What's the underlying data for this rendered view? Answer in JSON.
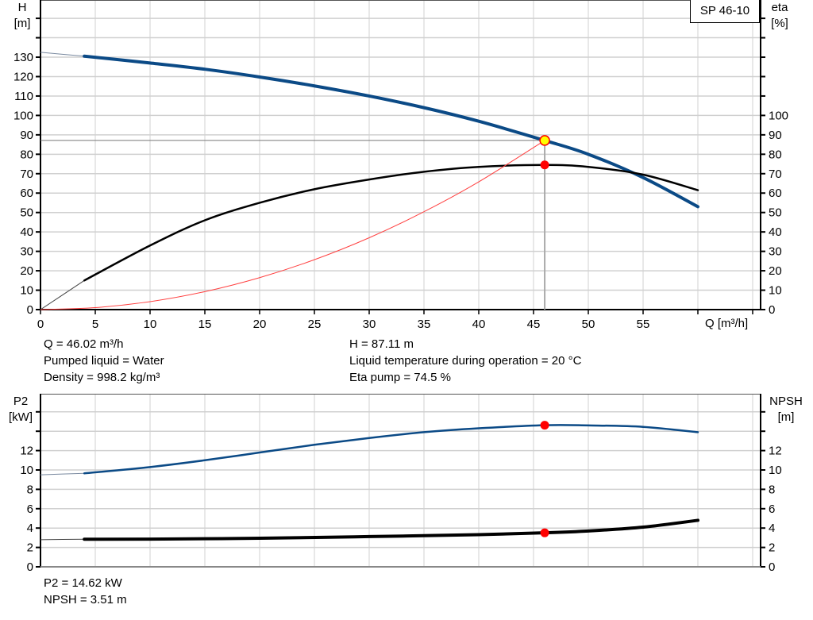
{
  "pump_label": "SP 46-10",
  "colors": {
    "head": "#0b4a86",
    "eta": "#000000",
    "system": "#ff4040",
    "p2": "#0b4a86",
    "npsh": "#000000",
    "marker": "#ff0000",
    "duty_marker": "#ffff00",
    "grid": "#d0d0d0"
  },
  "info_top": {
    "q": "Q = 46.02 m³/h",
    "liquid": "Pumped liquid = Water",
    "density": "Density = 998.2 kg/m³",
    "h": "H = 87.11 m",
    "temp": "Liquid temperature during operation = 20 °C",
    "eta": "Eta pump = 74.5 %"
  },
  "info_bottom": {
    "p2": "P2 = 14.62 kW",
    "npsh": "NPSH = 3.51 m"
  },
  "chart_data": [
    {
      "type": "line",
      "xlabel": "Q [m³/h]",
      "ylabel": {
        "name": "H",
        "unit": "[m]"
      },
      "y2label": {
        "name": "eta",
        "unit": "[%]"
      },
      "xlim": [
        0,
        65
      ],
      "ylim": [
        0,
        160
      ],
      "x_ticks": [
        0,
        5,
        10,
        15,
        20,
        25,
        30,
        35,
        40,
        45,
        50,
        55
      ],
      "y_ticks": [
        0,
        10,
        20,
        30,
        40,
        50,
        60,
        70,
        80,
        90,
        100,
        110,
        120,
        130
      ],
      "y2_ticks": [
        0,
        10,
        20,
        30,
        40,
        50,
        60,
        70,
        80,
        90,
        100
      ],
      "grid": true,
      "duty_point": {
        "q": 46.02,
        "h": 87.11,
        "eta": 74.5
      },
      "series": [
        {
          "key": "head",
          "axis": "left",
          "x": [
            0,
            4,
            10,
            15,
            20,
            25,
            30,
            35,
            40,
            46.02,
            50,
            55,
            60
          ],
          "y": [
            132.5,
            130.5,
            127,
            123.8,
            119.8,
            115.2,
            110,
            104,
            97,
            87.11,
            80,
            68,
            53
          ]
        },
        {
          "key": "eta",
          "axis": "right",
          "x": [
            0,
            4,
            10,
            15,
            20,
            25,
            30,
            35,
            40,
            46.02,
            50,
            55,
            60
          ],
          "y": [
            0,
            15,
            33,
            46,
            55,
            62,
            67,
            71,
            73.5,
            74.5,
            73.5,
            69.5,
            61.5
          ]
        },
        {
          "key": "system",
          "axis": "left",
          "x": [
            0,
            5,
            10,
            15,
            20,
            25,
            30,
            35,
            40,
            46.02
          ],
          "y": [
            0,
            1.03,
            4.11,
            9.25,
            16.45,
            25.7,
            37.0,
            50.4,
            65.8,
            87.11
          ]
        }
      ]
    },
    {
      "type": "line",
      "ylabel": {
        "name": "P2",
        "unit": "[kW]"
      },
      "y2label": {
        "name": "NPSH",
        "unit": "[m]"
      },
      "xlim": [
        0,
        65
      ],
      "ylim": [
        0,
        17.8
      ],
      "y_ticks": [
        0,
        2,
        4,
        6,
        8,
        10,
        12
      ],
      "y2_ticks": [
        0,
        2,
        4,
        6,
        8,
        10,
        12
      ],
      "grid": true,
      "duty_point": {
        "q": 46.02,
        "p2": 14.62,
        "npsh": 3.51
      },
      "series": [
        {
          "key": "p2",
          "axis": "left",
          "x": [
            0,
            4,
            10,
            15,
            20,
            25,
            30,
            35,
            40,
            46.02,
            50,
            55,
            60
          ],
          "y": [
            9.5,
            9.65,
            10.3,
            11.0,
            11.8,
            12.6,
            13.3,
            13.9,
            14.3,
            14.62,
            14.6,
            14.45,
            13.9
          ]
        },
        {
          "key": "npsh",
          "axis": "right",
          "x": [
            0,
            4,
            10,
            20,
            30,
            40,
            46.02,
            50,
            55,
            60
          ],
          "y": [
            2.8,
            2.85,
            2.86,
            2.95,
            3.12,
            3.32,
            3.51,
            3.7,
            4.1,
            4.8
          ]
        }
      ]
    }
  ]
}
